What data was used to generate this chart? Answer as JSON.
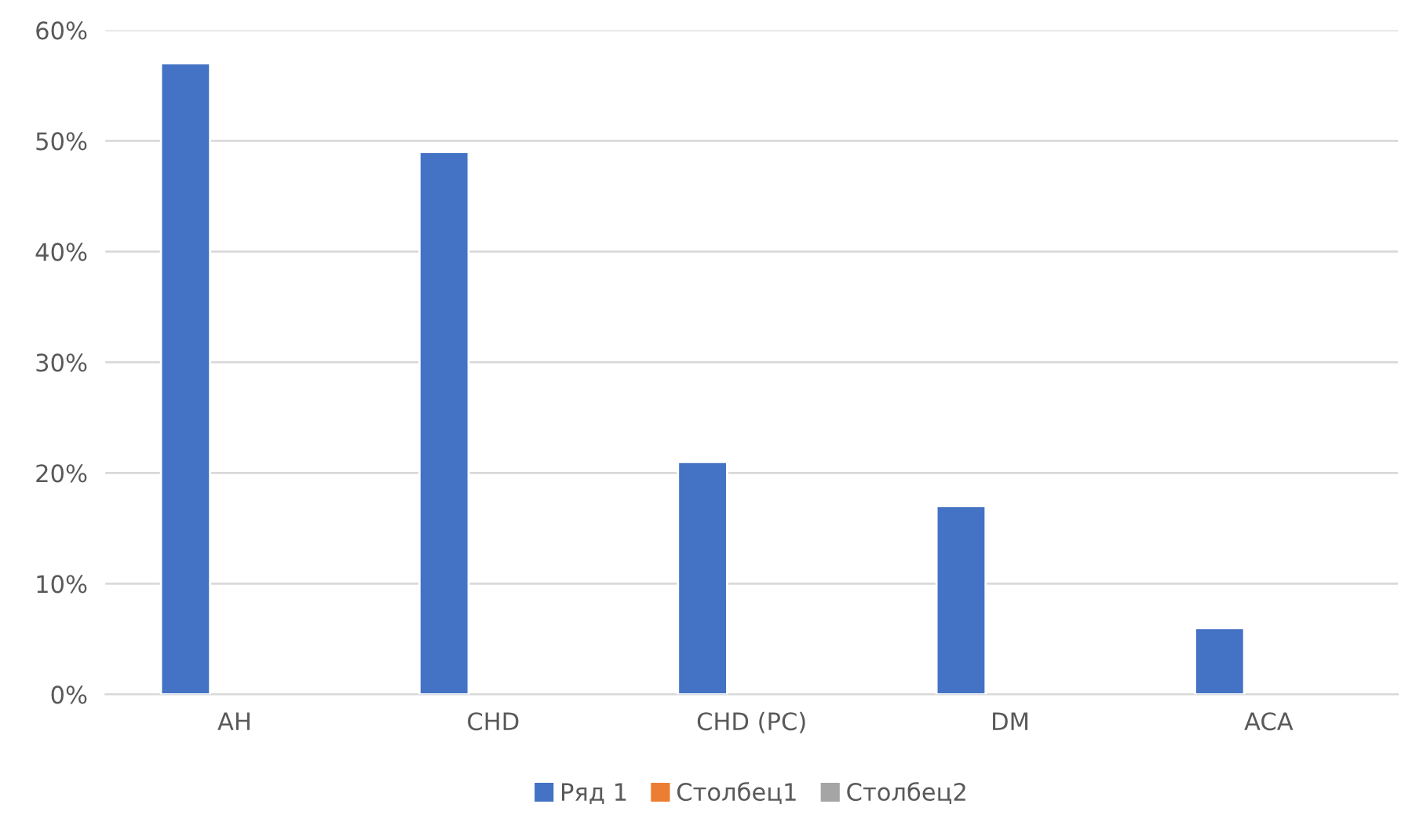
{
  "chart_data": {
    "type": "bar",
    "categories": [
      "AH",
      "CHD",
      "CHD (PC)",
      "DM",
      "ACA"
    ],
    "series": [
      {
        "name": "Ряд 1",
        "color": "#4472c4",
        "values": [
          57,
          49,
          21,
          17,
          6
        ]
      },
      {
        "name": "Столбец1",
        "color": "#ed7d31",
        "values": [
          null,
          null,
          null,
          null,
          null
        ]
      },
      {
        "name": "Столбец2",
        "color": "#a5a5a5",
        "values": [
          null,
          null,
          null,
          null,
          null
        ]
      }
    ],
    "ylim": [
      0,
      60
    ],
    "yticks": [
      {
        "value": 0,
        "label": "0%"
      },
      {
        "value": 10,
        "label": "10%"
      },
      {
        "value": 20,
        "label": "20%"
      },
      {
        "value": 30,
        "label": "30%"
      },
      {
        "value": 40,
        "label": "40%"
      },
      {
        "value": 50,
        "label": "50%"
      },
      {
        "value": 60,
        "label": "60%"
      }
    ],
    "grid": "y",
    "legend": "bottom"
  }
}
